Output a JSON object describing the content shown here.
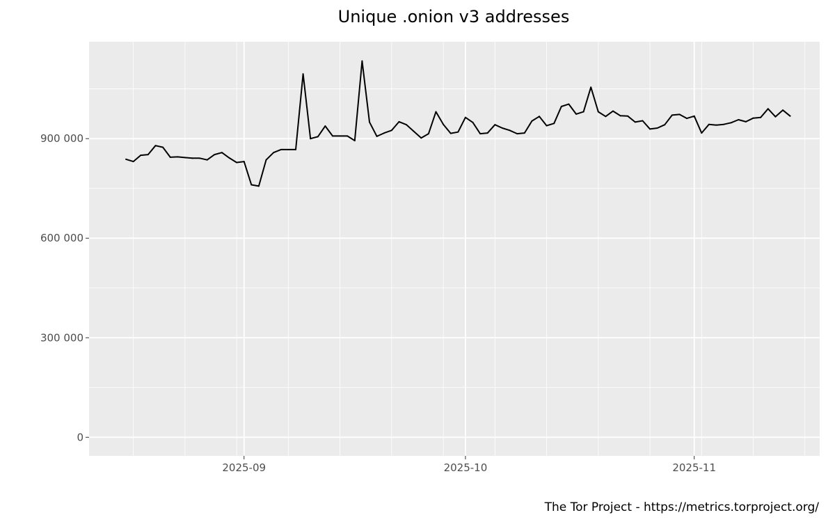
{
  "chart_data": {
    "type": "line",
    "title": "Unique .onion v3 addresses",
    "xlabel": "",
    "ylabel": "",
    "caption": "The Tor Project - https://metrics.torproject.org/",
    "x_start": "2025-08-16",
    "x_interval": "1 day",
    "xlim": [
      "2025-08-11",
      "2025-11-18"
    ],
    "ylim": [
      -56000,
      1192000
    ],
    "x_ticks": [
      {
        "date": "2025-09-01",
        "label": "2025-09"
      },
      {
        "date": "2025-10-01",
        "label": "2025-10"
      },
      {
        "date": "2025-11-01",
        "label": "2025-11"
      }
    ],
    "x_minor_grid": [
      "2025-08-17",
      "2025-08-24",
      "2025-08-31",
      "2025-09-07",
      "2025-09-14",
      "2025-09-21",
      "2025-09-28",
      "2025-10-05",
      "2025-10-12",
      "2025-10-19",
      "2025-10-26",
      "2025-11-02",
      "2025-11-09",
      "2025-11-16"
    ],
    "y_ticks": [
      {
        "value": 0,
        "label": "0"
      },
      {
        "value": 300000,
        "label": "300 000"
      },
      {
        "value": 600000,
        "label": "600 000"
      },
      {
        "value": 900000,
        "label": "900 000"
      }
    ],
    "y_minor_grid": [
      150000,
      450000,
      750000,
      1050000
    ],
    "grid": true,
    "legend": "none",
    "colors": {
      "line": "#000000",
      "panel": "#ebebeb",
      "grid": "#ffffff"
    },
    "values": [
      838000,
      831000,
      850000,
      852000,
      879000,
      874000,
      844000,
      845000,
      843000,
      841000,
      841000,
      836000,
      852000,
      858000,
      842000,
      828000,
      831000,
      761000,
      757000,
      836000,
      858000,
      867000,
      867000,
      867000,
      1095000,
      900000,
      906000,
      938000,
      908000,
      908000,
      908000,
      894000,
      1134000,
      950000,
      907000,
      917000,
      925000,
      951000,
      942000,
      922000,
      902000,
      915000,
      981000,
      943000,
      916000,
      920000,
      964000,
      949000,
      915000,
      917000,
      942000,
      932000,
      925000,
      915000,
      917000,
      953000,
      967000,
      939000,
      946000,
      997000,
      1004000,
      974000,
      981000,
      1055000,
      981000,
      967000,
      983000,
      969000,
      968000,
      950000,
      954000,
      929000,
      932000,
      942000,
      971000,
      973000,
      961000,
      968000,
      917000,
      943000,
      941000,
      943000,
      948000,
      957000,
      951000,
      962000,
      964000,
      990000,
      966000,
      986000,
      968000
    ]
  }
}
